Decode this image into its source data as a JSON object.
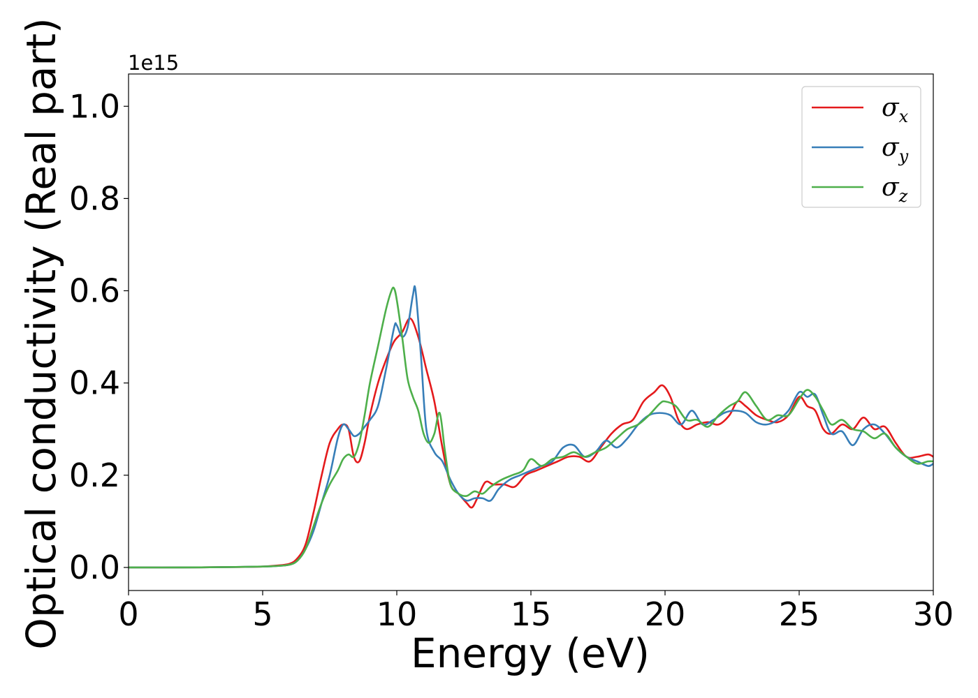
{
  "chart_data": {
    "type": "line",
    "xlabel": "Energy (eV)",
    "ylabel": "Optical conductivity (Real part)",
    "y_offset_label": "1e15",
    "xlim": [
      0,
      30
    ],
    "ylim": [
      -0.05,
      1.07
    ],
    "xticks": [
      0,
      5,
      10,
      15,
      20,
      25,
      30
    ],
    "xtick_labels": [
      "0",
      "5",
      "10",
      "15",
      "20",
      "25",
      "30"
    ],
    "yticks": [
      0.0,
      0.2,
      0.4,
      0.6,
      0.8,
      1.0
    ],
    "ytick_labels": [
      "0.0",
      "0.2",
      "0.4",
      "0.6",
      "0.8",
      "1.0"
    ],
    "grid": false,
    "legend_position": "top-right",
    "series": [
      {
        "name": "σx",
        "legend_symbol": "σ",
        "legend_sub": "x",
        "color": "#e41a1c",
        "x": [
          0,
          2,
          4,
          5,
          5.5,
          6,
          6.3,
          6.6,
          6.9,
          7.2,
          7.5,
          7.8,
          8.0,
          8.2,
          8.4,
          8.6,
          8.8,
          9.0,
          9.3,
          9.6,
          9.9,
          10.2,
          10.5,
          10.8,
          11.1,
          11.4,
          11.7,
          12.0,
          12.3,
          12.6,
          12.8,
          13.0,
          13.3,
          13.6,
          14.0,
          14.4,
          14.8,
          15.2,
          15.6,
          16.0,
          16.4,
          16.8,
          17.2,
          17.6,
          18.0,
          18.4,
          18.8,
          19.2,
          19.6,
          19.9,
          20.2,
          20.5,
          20.8,
          21.2,
          21.6,
          22.0,
          22.4,
          22.7,
          23.0,
          23.4,
          23.8,
          24.2,
          24.6,
          25.0,
          25.3,
          25.6,
          25.9,
          26.2,
          26.6,
          27.0,
          27.4,
          27.8,
          28.2,
          28.6,
          29.0,
          29.4,
          29.8,
          30.0
        ],
        "y": [
          0.0,
          0.0,
          0.001,
          0.002,
          0.004,
          0.008,
          0.02,
          0.05,
          0.12,
          0.2,
          0.27,
          0.3,
          0.31,
          0.3,
          0.24,
          0.23,
          0.27,
          0.33,
          0.4,
          0.45,
          0.49,
          0.51,
          0.54,
          0.5,
          0.43,
          0.36,
          0.26,
          0.18,
          0.16,
          0.14,
          0.13,
          0.15,
          0.185,
          0.18,
          0.18,
          0.175,
          0.2,
          0.21,
          0.22,
          0.23,
          0.24,
          0.24,
          0.23,
          0.26,
          0.29,
          0.31,
          0.32,
          0.36,
          0.38,
          0.395,
          0.37,
          0.32,
          0.3,
          0.31,
          0.315,
          0.31,
          0.33,
          0.36,
          0.35,
          0.33,
          0.32,
          0.315,
          0.33,
          0.37,
          0.35,
          0.34,
          0.3,
          0.29,
          0.31,
          0.3,
          0.325,
          0.3,
          0.305,
          0.27,
          0.24,
          0.24,
          0.245,
          0.24
        ]
      },
      {
        "name": "σy",
        "legend_symbol": "σ",
        "legend_sub": "y",
        "color": "#377eb8",
        "x": [
          0,
          2,
          4,
          5,
          5.5,
          6,
          6.3,
          6.6,
          6.9,
          7.2,
          7.5,
          7.8,
          8.0,
          8.2,
          8.4,
          8.6,
          8.8,
          9.0,
          9.3,
          9.6,
          9.9,
          10.0,
          10.2,
          10.4,
          10.6,
          10.7,
          10.9,
          11.1,
          11.4,
          11.7,
          12.0,
          12.3,
          12.6,
          12.9,
          13.2,
          13.5,
          13.8,
          14.2,
          14.6,
          15.0,
          15.4,
          15.8,
          16.2,
          16.6,
          17.0,
          17.4,
          17.8,
          18.2,
          18.6,
          19.0,
          19.4,
          19.8,
          20.2,
          20.6,
          21.0,
          21.4,
          21.8,
          22.2,
          22.6,
          23.0,
          23.4,
          23.8,
          24.2,
          24.6,
          25.0,
          25.3,
          25.6,
          25.9,
          26.2,
          26.6,
          27.0,
          27.4,
          27.8,
          28.2,
          28.6,
          29.0,
          29.4,
          29.8,
          30.0
        ],
        "y": [
          0.0,
          0.0,
          0.001,
          0.002,
          0.003,
          0.006,
          0.015,
          0.04,
          0.08,
          0.14,
          0.2,
          0.28,
          0.31,
          0.3,
          0.285,
          0.29,
          0.305,
          0.32,
          0.35,
          0.43,
          0.52,
          0.525,
          0.5,
          0.52,
          0.59,
          0.6,
          0.46,
          0.3,
          0.25,
          0.23,
          0.19,
          0.16,
          0.145,
          0.15,
          0.15,
          0.145,
          0.17,
          0.19,
          0.2,
          0.21,
          0.22,
          0.23,
          0.26,
          0.265,
          0.24,
          0.25,
          0.275,
          0.26,
          0.28,
          0.31,
          0.33,
          0.335,
          0.33,
          0.31,
          0.34,
          0.31,
          0.32,
          0.335,
          0.34,
          0.335,
          0.315,
          0.31,
          0.32,
          0.34,
          0.38,
          0.37,
          0.375,
          0.33,
          0.29,
          0.295,
          0.265,
          0.3,
          0.31,
          0.29,
          0.26,
          0.24,
          0.23,
          0.22,
          0.225
        ]
      },
      {
        "name": "σz",
        "legend_symbol": "σ",
        "legend_sub": "z",
        "color": "#4daf4a",
        "x": [
          0,
          2,
          4,
          5,
          5.5,
          6,
          6.3,
          6.6,
          6.9,
          7.2,
          7.5,
          7.8,
          8.0,
          8.2,
          8.4,
          8.6,
          8.8,
          9.0,
          9.3,
          9.6,
          9.8,
          9.9,
          10.0,
          10.2,
          10.4,
          10.6,
          10.8,
          11.0,
          11.2,
          11.4,
          11.6,
          11.8,
          12.0,
          12.3,
          12.6,
          12.9,
          13.2,
          13.5,
          13.9,
          14.3,
          14.7,
          15.0,
          15.4,
          15.8,
          16.2,
          16.6,
          17.0,
          17.4,
          17.8,
          18.2,
          18.6,
          19.0,
          19.4,
          19.8,
          20.0,
          20.4,
          20.8,
          21.2,
          21.6,
          22.0,
          22.4,
          22.7,
          23.0,
          23.4,
          23.8,
          24.2,
          24.6,
          25.0,
          25.3,
          25.6,
          25.9,
          26.2,
          26.6,
          27.0,
          27.4,
          27.8,
          28.2,
          28.6,
          29.0,
          29.4,
          29.8,
          30.0
        ],
        "y": [
          0.0,
          0.0,
          0.001,
          0.002,
          0.003,
          0.006,
          0.015,
          0.04,
          0.09,
          0.14,
          0.18,
          0.21,
          0.235,
          0.245,
          0.24,
          0.27,
          0.33,
          0.4,
          0.48,
          0.56,
          0.6,
          0.605,
          0.58,
          0.5,
          0.41,
          0.37,
          0.34,
          0.29,
          0.27,
          0.29,
          0.335,
          0.25,
          0.18,
          0.16,
          0.155,
          0.165,
          0.16,
          0.175,
          0.19,
          0.2,
          0.21,
          0.235,
          0.22,
          0.235,
          0.24,
          0.25,
          0.24,
          0.25,
          0.26,
          0.28,
          0.3,
          0.31,
          0.33,
          0.355,
          0.36,
          0.35,
          0.32,
          0.32,
          0.305,
          0.33,
          0.35,
          0.36,
          0.38,
          0.35,
          0.32,
          0.33,
          0.33,
          0.365,
          0.385,
          0.37,
          0.34,
          0.31,
          0.32,
          0.3,
          0.295,
          0.28,
          0.29,
          0.26,
          0.24,
          0.225,
          0.23,
          0.23
        ]
      }
    ]
  }
}
